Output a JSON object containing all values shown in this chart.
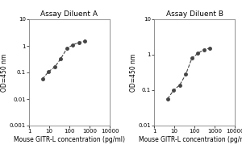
{
  "left_title": "Assay Diluent A",
  "right_title": "Assay Diluent B",
  "xlabel": "Mouse GITR-L concentration (pg/ml)",
  "ylabel": "OD=450 nm",
  "left_x": [
    4.69,
    9.38,
    18.75,
    37.5,
    75,
    150,
    300,
    600
  ],
  "left_y": [
    0.057,
    0.108,
    0.16,
    0.33,
    0.8,
    1.1,
    1.35,
    1.5
  ],
  "right_x": [
    4.69,
    9.38,
    18.75,
    37.5,
    75,
    150,
    300,
    600
  ],
  "right_y": [
    0.057,
    0.1,
    0.14,
    0.28,
    0.8,
    1.1,
    1.4,
    1.55
  ],
  "left_xlim": [
    1,
    10000
  ],
  "left_ylim": [
    0.001,
    10
  ],
  "right_xlim": [
    1,
    10000
  ],
  "right_ylim": [
    0.01,
    10
  ],
  "left_yticks": [
    0.001,
    0.01,
    0.1,
    1,
    10
  ],
  "left_ytick_labels": [
    "0.001",
    "0.01",
    "0.1",
    "1",
    "10"
  ],
  "right_yticks": [
    0.01,
    0.1,
    1,
    10
  ],
  "right_ytick_labels": [
    "0.01",
    "0.1",
    "1",
    "10"
  ],
  "left_xticks": [
    1,
    10,
    100,
    1000,
    10000
  ],
  "left_xtick_labels": [
    "1",
    "10",
    "100",
    "1000",
    "10000"
  ],
  "right_xticks": [
    1,
    10,
    100,
    1000,
    10000
  ],
  "right_xtick_labels": [
    "1",
    "10",
    "100",
    "1000",
    "10000"
  ],
  "line_color": "#444444",
  "marker": "o",
  "markersize": 2.5,
  "linewidth": 0.8,
  "bg_color": "#ffffff",
  "title_fontsize": 6.5,
  "label_fontsize": 5.5,
  "tick_fontsize": 5
}
